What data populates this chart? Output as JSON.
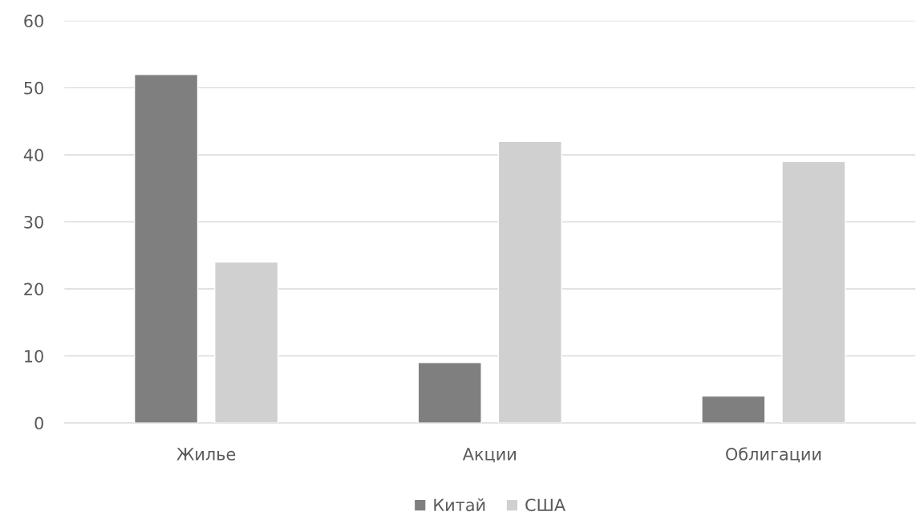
{
  "chart_data": {
    "type": "bar",
    "categories": [
      "Жилье",
      "Акции",
      "Облигации"
    ],
    "series": [
      {
        "name": "Китай",
        "color": "#7f7f7f",
        "values": [
          52,
          9,
          4
        ]
      },
      {
        "name": "США",
        "color": "#d0d0d0",
        "values": [
          24,
          42,
          39
        ]
      }
    ],
    "ylim": [
      0,
      60
    ],
    "yticks": [
      0,
      10,
      20,
      30,
      40,
      50,
      60
    ],
    "grid": "y",
    "legend": "bottom"
  }
}
